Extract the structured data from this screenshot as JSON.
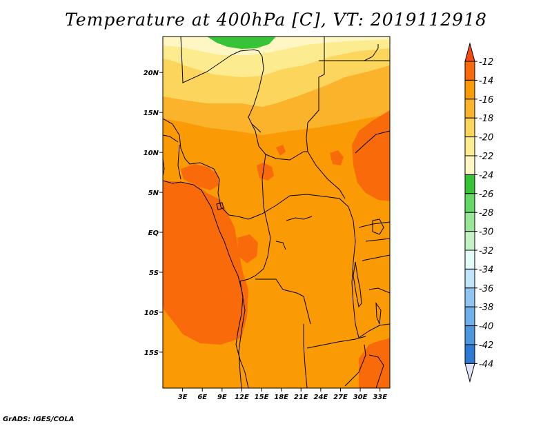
{
  "title": "Temperature at 400hPa [C], VT: 2019112918",
  "credit": "GrADS: IGES/COLA",
  "map": {
    "lat_ticks": [
      {
        "label": "20N",
        "lat": 20
      },
      {
        "label": "15N",
        "lat": 15
      },
      {
        "label": "10N",
        "lat": 10
      },
      {
        "label": "5N",
        "lat": 5
      },
      {
        "label": "EQ",
        "lat": 0
      },
      {
        "label": "5S",
        "lat": -5
      },
      {
        "label": "10S",
        "lat": -10
      },
      {
        "label": "15S",
        "lat": -15
      }
    ],
    "lon_ticks": [
      {
        "label": "3E",
        "lon": 3
      },
      {
        "label": "6E",
        "lon": 6
      },
      {
        "label": "9E",
        "lon": 9
      },
      {
        "label": "12E",
        "lon": 12
      },
      {
        "label": "15E",
        "lon": 15
      },
      {
        "label": "18E",
        "lon": 18
      },
      {
        "label": "21E",
        "lon": 21
      },
      {
        "label": "24E",
        "lon": 24
      },
      {
        "label": "27E",
        "lon": 27
      },
      {
        "label": "30E",
        "lon": 30
      },
      {
        "label": "33E",
        "lon": 33
      }
    ],
    "lon_range": [
      0,
      34.5
    ],
    "lat_range": [
      -19.5,
      24.5
    ]
  },
  "colorbar": {
    "labels": [
      "-12",
      "-14",
      "-16",
      "-18",
      "-20",
      "-22",
      "-24",
      "-26",
      "-28",
      "-30",
      "-32",
      "-34",
      "-36",
      "-38",
      "-40",
      "-42",
      "-44"
    ],
    "colors": [
      "#f44a14",
      "#f96a0a",
      "#fa9a05",
      "#fab32b",
      "#fbd55c",
      "#fdeb8f",
      "#fef7c3",
      "#36c336",
      "#65d965",
      "#98e698",
      "#c3f3c3",
      "#e2fbf8",
      "#bfe6fa",
      "#8ec5f2",
      "#6eb1ea",
      "#4d96e0",
      "#2d7bd6",
      "#1560cc",
      "#0b40a0",
      "#0a1080",
      "#e3e6fb"
    ]
  },
  "field_colors": {
    "green": "#36c336",
    "pale": "#fef7c3",
    "light_yellow": "#fdeb8f",
    "yellow": "#fbd55c",
    "orange": "#fab32b",
    "orange_mid": "#fa9a05",
    "dark_orange": "#f96a0a"
  }
}
